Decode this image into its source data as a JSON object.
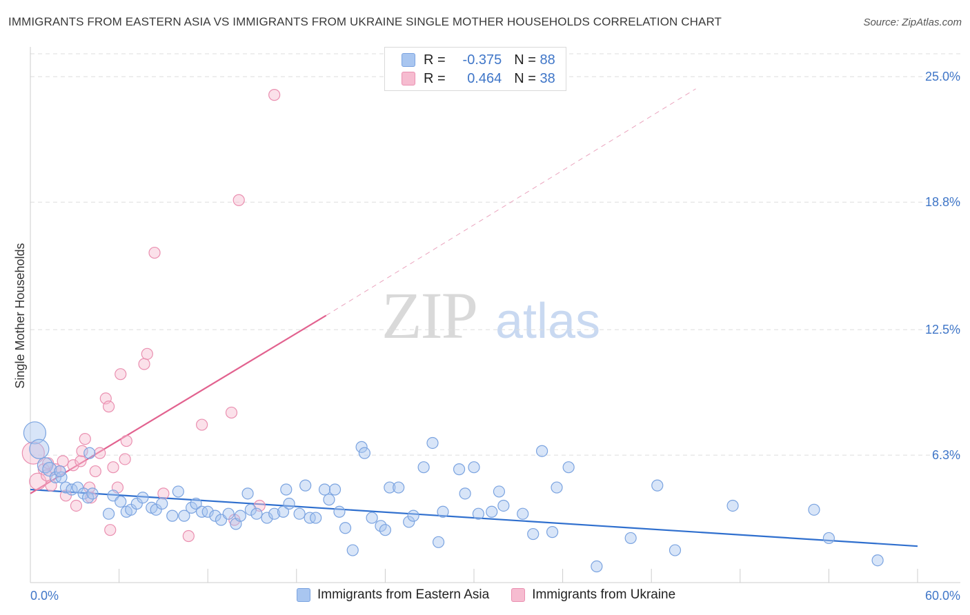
{
  "header": {
    "title": "IMMIGRANTS FROM EASTERN ASIA VS IMMIGRANTS FROM UKRAINE SINGLE MOTHER HOUSEHOLDS CORRELATION CHART",
    "source": "Source: ZipAtlas.com"
  },
  "watermark": {
    "zip": "ZIP",
    "atlas": "atlas"
  },
  "legend": {
    "r_label": "R =",
    "n_label": "N =",
    "rows": [
      {
        "r": "-0.375",
        "n": "88"
      },
      {
        "r": "0.464",
        "n": "38"
      }
    ]
  },
  "bottom_legend": [
    {
      "label": "Immigrants from Eastern Asia"
    },
    {
      "label": "Immigrants from Ukraine"
    }
  ],
  "colors": {
    "blue_fill": "#a9c6f0",
    "blue_stroke": "#7aa3e0",
    "blue_line": "#2f6fce",
    "pink_fill": "#f6bcd0",
    "pink_stroke": "#ea8fb0",
    "pink_line": "#e2628f",
    "tick_text": "#3f76c8",
    "grid": "#dddddd"
  },
  "chart_data": {
    "type": "scatter",
    "title": "IMMIGRANTS FROM EASTERN ASIA VS IMMIGRANTS FROM UKRAINE SINGLE MOTHER HOUSEHOLDS CORRELATION CHART",
    "xlabel": "",
    "ylabel": "Single Mother Households",
    "xlim": [
      0,
      60
    ],
    "ylim": [
      0,
      26.2
    ],
    "x_tick_labels": [
      "0.0%",
      "60.0%"
    ],
    "y_ticks": [
      6.3,
      12.5,
      18.8,
      25.0
    ],
    "y_tick_labels": [
      "6.3%",
      "12.5%",
      "18.8%",
      "25.0%"
    ],
    "grid": "horizontal dashed",
    "series": [
      {
        "name": "Immigrants from Eastern Asia",
        "trend": {
          "x": [
            0,
            60
          ],
          "y": [
            4.6,
            1.8
          ]
        },
        "points": [
          [
            0.3,
            7.4,
            14
          ],
          [
            0.6,
            6.6,
            12
          ],
          [
            1.0,
            5.8,
            9
          ],
          [
            1.3,
            5.6,
            8
          ],
          [
            1.7,
            5.2,
            7
          ],
          [
            2.1,
            5.2,
            7
          ],
          [
            2.4,
            4.7,
            7
          ],
          [
            2.8,
            4.6,
            7
          ],
          [
            3.2,
            4.7,
            7
          ],
          [
            3.6,
            4.4,
            7
          ],
          [
            3.9,
            4.2,
            7
          ],
          [
            4.2,
            4.4,
            7
          ],
          [
            5.3,
            3.4,
            7
          ],
          [
            5.6,
            4.3,
            7
          ],
          [
            6.1,
            4.0,
            7
          ],
          [
            6.5,
            3.5,
            7
          ],
          [
            6.8,
            3.6,
            7
          ],
          [
            7.2,
            3.9,
            7
          ],
          [
            7.6,
            4.2,
            7
          ],
          [
            8.2,
            3.7,
            7
          ],
          [
            8.5,
            3.6,
            7
          ],
          [
            8.9,
            3.9,
            7
          ],
          [
            9.6,
            3.3,
            7
          ],
          [
            10.0,
            4.5,
            7
          ],
          [
            10.4,
            3.3,
            7
          ],
          [
            10.9,
            3.7,
            7
          ],
          [
            11.2,
            3.9,
            7
          ],
          [
            11.6,
            3.5,
            7
          ],
          [
            12.0,
            3.5,
            7
          ],
          [
            12.5,
            3.3,
            7
          ],
          [
            12.9,
            3.1,
            7
          ],
          [
            13.4,
            3.4,
            7
          ],
          [
            13.9,
            2.9,
            7
          ],
          [
            14.2,
            3.3,
            7
          ],
          [
            14.7,
            4.4,
            7
          ],
          [
            14.9,
            3.6,
            7
          ],
          [
            15.3,
            3.4,
            7
          ],
          [
            16.0,
            3.2,
            7
          ],
          [
            16.5,
            3.4,
            7
          ],
          [
            17.1,
            3.5,
            7
          ],
          [
            17.3,
            4.6,
            7
          ],
          [
            17.5,
            3.9,
            7
          ],
          [
            18.2,
            3.4,
            7
          ],
          [
            18.6,
            4.8,
            7
          ],
          [
            18.9,
            3.2,
            7
          ],
          [
            19.3,
            3.2,
            7
          ],
          [
            19.9,
            4.6,
            7
          ],
          [
            20.2,
            4.1,
            7
          ],
          [
            20.6,
            4.6,
            7
          ],
          [
            20.9,
            3.5,
            7
          ],
          [
            21.3,
            2.7,
            7
          ],
          [
            21.8,
            1.6,
            7
          ],
          [
            22.4,
            6.7,
            7
          ],
          [
            22.6,
            6.4,
            7
          ],
          [
            23.1,
            3.2,
            7
          ],
          [
            23.7,
            2.8,
            7
          ],
          [
            24.0,
            2.6,
            7
          ],
          [
            24.3,
            4.7,
            7
          ],
          [
            24.9,
            4.7,
            7
          ],
          [
            25.6,
            3.0,
            7
          ],
          [
            25.9,
            3.3,
            7
          ],
          [
            26.6,
            5.7,
            7
          ],
          [
            27.2,
            6.9,
            7
          ],
          [
            27.6,
            2.0,
            7
          ],
          [
            27.9,
            3.5,
            7
          ],
          [
            29.0,
            5.6,
            7
          ],
          [
            29.4,
            4.4,
            7
          ],
          [
            30.0,
            5.7,
            7
          ],
          [
            30.3,
            3.4,
            7
          ],
          [
            31.2,
            3.5,
            7
          ],
          [
            31.7,
            4.5,
            7
          ],
          [
            32.0,
            3.8,
            7
          ],
          [
            33.3,
            3.4,
            7
          ],
          [
            34.0,
            2.4,
            7
          ],
          [
            34.6,
            6.5,
            7
          ],
          [
            35.3,
            2.5,
            7
          ],
          [
            35.6,
            4.7,
            7
          ],
          [
            36.4,
            5.7,
            7
          ],
          [
            38.3,
            0.8,
            7
          ],
          [
            40.6,
            2.2,
            7
          ],
          [
            42.4,
            4.8,
            7
          ],
          [
            43.6,
            1.6,
            7
          ],
          [
            47.5,
            3.8,
            7
          ],
          [
            53.0,
            3.6,
            7
          ],
          [
            54.0,
            2.2,
            7
          ],
          [
            57.3,
            1.1,
            7
          ],
          [
            2.0,
            5.5,
            7
          ],
          [
            4.0,
            6.4,
            7
          ]
        ]
      },
      {
        "name": "Immigrants from Ukraine",
        "trend": {
          "x": [
            0,
            20
          ],
          "y": [
            4.4,
            13.2
          ],
          "dashed_extension": {
            "x": [
              20,
              45
            ],
            "y": [
              13.2,
              24.4
            ]
          }
        },
        "points": [
          [
            0.2,
            6.4,
            14
          ],
          [
            0.5,
            5.0,
            10
          ],
          [
            0.9,
            5.6,
            7
          ],
          [
            1.1,
            5.3,
            7
          ],
          [
            1.4,
            4.8,
            7
          ],
          [
            1.7,
            5.6,
            7
          ],
          [
            2.0,
            5.5,
            7
          ],
          [
            2.4,
            4.3,
            7
          ],
          [
            2.9,
            5.8,
            7
          ],
          [
            3.1,
            3.8,
            7
          ],
          [
            3.4,
            6.0,
            7
          ],
          [
            3.7,
            7.1,
            7
          ],
          [
            4.0,
            4.7,
            7
          ],
          [
            4.1,
            4.2,
            7
          ],
          [
            4.4,
            5.5,
            7
          ],
          [
            4.7,
            6.4,
            7
          ],
          [
            5.1,
            9.1,
            7
          ],
          [
            5.3,
            8.7,
            7
          ],
          [
            5.6,
            5.7,
            7
          ],
          [
            5.9,
            4.7,
            7
          ],
          [
            6.1,
            10.3,
            7
          ],
          [
            6.4,
            6.1,
            7
          ],
          [
            6.5,
            7.0,
            7
          ],
          [
            7.7,
            10.8,
            7
          ],
          [
            7.9,
            11.3,
            7
          ],
          [
            8.4,
            16.3,
            7
          ],
          [
            9.0,
            4.4,
            7
          ],
          [
            10.7,
            2.3,
            7
          ],
          [
            11.6,
            7.8,
            7
          ],
          [
            13.6,
            8.4,
            7
          ],
          [
            13.8,
            3.1,
            7
          ],
          [
            14.1,
            18.9,
            7
          ],
          [
            15.5,
            3.8,
            7
          ],
          [
            16.5,
            24.1,
            7
          ],
          [
            2.2,
            6.0,
            7
          ],
          [
            1.2,
            5.9,
            7
          ],
          [
            5.4,
            2.6,
            7
          ],
          [
            3.5,
            6.5,
            7
          ]
        ]
      }
    ]
  }
}
